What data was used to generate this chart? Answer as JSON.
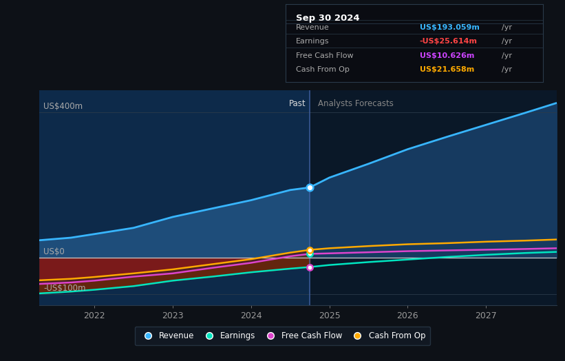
{
  "background_color": "#0d1117",
  "plot_bg_color": "#0d1b2e",
  "title": "Sep 30 2024",
  "ylabel_400": "US$400m",
  "ylabel_0": "US$0",
  "ylabel_n100": "-US$100m",
  "past_label": "Past",
  "forecast_label": "Analysts Forecasts",
  "x_ticks": [
    2022,
    2023,
    2024,
    2025,
    2026,
    2027
  ],
  "divider_x": 2024.75,
  "xlim": [
    2021.3,
    2027.9
  ],
  "ylim": [
    -130,
    460
  ],
  "revenue_past_x": [
    2021.3,
    2021.7,
    2022.0,
    2022.5,
    2023.0,
    2023.5,
    2024.0,
    2024.5,
    2024.75
  ],
  "revenue_past_y": [
    48,
    55,
    65,
    82,
    112,
    135,
    158,
    186,
    193
  ],
  "revenue_future_x": [
    2024.75,
    2025.0,
    2025.5,
    2026.0,
    2026.5,
    2027.0,
    2027.5,
    2027.9
  ],
  "revenue_future_y": [
    193,
    220,
    258,
    298,
    332,
    365,
    398,
    425
  ],
  "earnings_past_x": [
    2021.3,
    2021.7,
    2022.0,
    2022.5,
    2023.0,
    2023.5,
    2024.0,
    2024.5,
    2024.75
  ],
  "earnings_past_y": [
    -98,
    -93,
    -88,
    -78,
    -63,
    -52,
    -40,
    -30,
    -25.6
  ],
  "earnings_future_x": [
    2024.75,
    2025.0,
    2025.5,
    2026.0,
    2026.5,
    2027.0,
    2027.5,
    2027.9
  ],
  "earnings_future_y": [
    -25.6,
    -20,
    -12,
    -5,
    2,
    8,
    13,
    16
  ],
  "fcf_past_x": [
    2021.3,
    2021.7,
    2022.0,
    2022.5,
    2023.0,
    2023.5,
    2024.0,
    2024.5,
    2024.75
  ],
  "fcf_past_y": [
    -72,
    -68,
    -63,
    -52,
    -43,
    -28,
    -14,
    4,
    10.6
  ],
  "fcf_future_x": [
    2024.75,
    2025.0,
    2025.5,
    2026.0,
    2026.5,
    2027.0,
    2027.5,
    2027.9
  ],
  "fcf_future_y": [
    10.6,
    12,
    15,
    18,
    20,
    22,
    24,
    26
  ],
  "cashop_past_x": [
    2021.3,
    2021.7,
    2022.0,
    2022.5,
    2023.0,
    2023.5,
    2024.0,
    2024.5,
    2024.75
  ],
  "cashop_past_y": [
    -62,
    -58,
    -53,
    -43,
    -32,
    -18,
    -4,
    14,
    21.6
  ],
  "cashop_future_x": [
    2024.75,
    2025.0,
    2025.5,
    2026.0,
    2026.5,
    2027.0,
    2027.5,
    2027.9
  ],
  "cashop_future_y": [
    21.6,
    26,
    32,
    37,
    40,
    44,
    47,
    50
  ],
  "revenue_color": "#38b6ff",
  "earnings_color": "#00e5c0",
  "fcf_color": "#dd44cc",
  "cashop_color": "#ffaa00",
  "tooltip_rows": [
    {
      "label": "Revenue",
      "value": "US$193.059m",
      "unit": "/yr",
      "color": "#38b6ff"
    },
    {
      "label": "Earnings",
      "value": "-US$25.614m",
      "unit": "/yr",
      "color": "#ff4444"
    },
    {
      "label": "Free Cash Flow",
      "value": "US$10.626m",
      "unit": "/yr",
      "color": "#cc44ff"
    },
    {
      "label": "Cash From Op",
      "value": "US$21.658m",
      "unit": "/yr",
      "color": "#ffaa00"
    }
  ],
  "legend_items": [
    {
      "label": "Revenue",
      "color": "#38b6ff"
    },
    {
      "label": "Earnings",
      "color": "#00e5c0"
    },
    {
      "label": "Free Cash Flow",
      "color": "#dd44cc"
    },
    {
      "label": "Cash From Op",
      "color": "#ffaa00"
    }
  ]
}
